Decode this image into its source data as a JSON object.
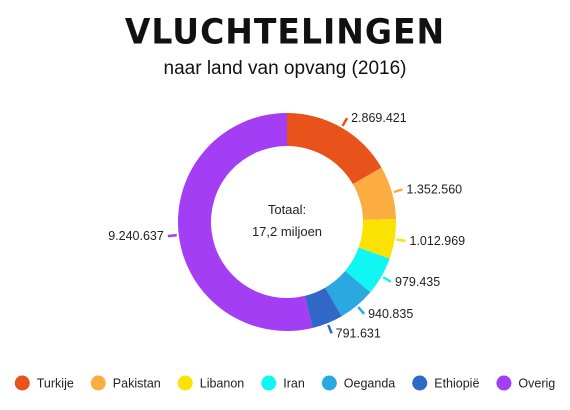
{
  "header": {
    "title": "VLUCHTELINGEN",
    "subtitle": "naar land van opvang (2016)"
  },
  "chart_data": {
    "type": "pie",
    "variant": "donut",
    "title": "VLUCHTELINGEN",
    "subtitle": "naar land van opvang (2016)",
    "center_label": [
      "Totaal:",
      "17,2 miljoen"
    ],
    "legend_position": "bottom",
    "slices": [
      {
        "label": "Turkije",
        "value": 2869421,
        "value_label": "2.869.421",
        "color": "#e8521b"
      },
      {
        "label": "Pakistan",
        "value": 1352560,
        "value_label": "1.352.560",
        "color": "#fbad3f"
      },
      {
        "label": "Libanon",
        "value": 1012969,
        "value_label": "1.012.969",
        "color": "#fae300"
      },
      {
        "label": "Iran",
        "value": 979435,
        "value_label": "979.435",
        "color": "#11f6f3"
      },
      {
        "label": "Oeganda",
        "value": 940835,
        "value_label": "940.835",
        "color": "#2aa9e0"
      },
      {
        "label": "Ethiopië",
        "value": 791631,
        "value_label": "791.631",
        "color": "#3168c7"
      },
      {
        "label": "Overig",
        "value": 9240637,
        "value_label": "9.240.637",
        "color": "#a43ef5"
      }
    ]
  }
}
